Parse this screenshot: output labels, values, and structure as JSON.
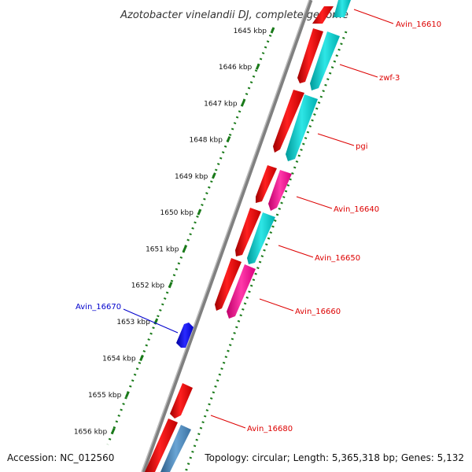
{
  "map": {
    "title": "Azotobacter vinelandii DJ, complete genome",
    "accession": "Accession: NC_012560",
    "topology": "Topology: circular; Length: 5,365,318 bp; Genes: 5,132",
    "colors": {
      "backbone": "#777777",
      "ruler": "#1a7a1a",
      "red_label": "#dd0000",
      "blue_label": "#0000cc",
      "red_gene": "#ff0000",
      "cyan_gene": "#00cccc",
      "pink_gene": "#ff1aa0",
      "blue_gene": "#0000ff",
      "steel_gene": "#4a86b8"
    },
    "ruler_kbp": [
      1645,
      1646,
      1647,
      1648,
      1649,
      1650,
      1651,
      1652,
      1653,
      1654,
      1655,
      1656
    ],
    "ruler_labels": [
      "1645 kbp",
      "1646 kbp",
      "1647 kbp",
      "1648 kbp",
      "1649 kbp",
      "1650 kbp",
      "1651 kbp",
      "1652 kbp",
      "1653 kbp",
      "1654 kbp",
      "1655 kbp",
      "1656 kbp"
    ],
    "genes": [
      {
        "label": "Avin_16610",
        "color": "red_label"
      },
      {
        "label": "zwf-3",
        "color": "red_label"
      },
      {
        "label": "pgi",
        "color": "red_label"
      },
      {
        "label": "Avin_16640",
        "color": "red_label"
      },
      {
        "label": "Avin_16650",
        "color": "red_label"
      },
      {
        "label": "Avin_16660",
        "color": "red_label"
      },
      {
        "label": "Avin_16670",
        "color": "blue_label"
      },
      {
        "label": "Avin_16680",
        "color": "red_label"
      }
    ]
  }
}
